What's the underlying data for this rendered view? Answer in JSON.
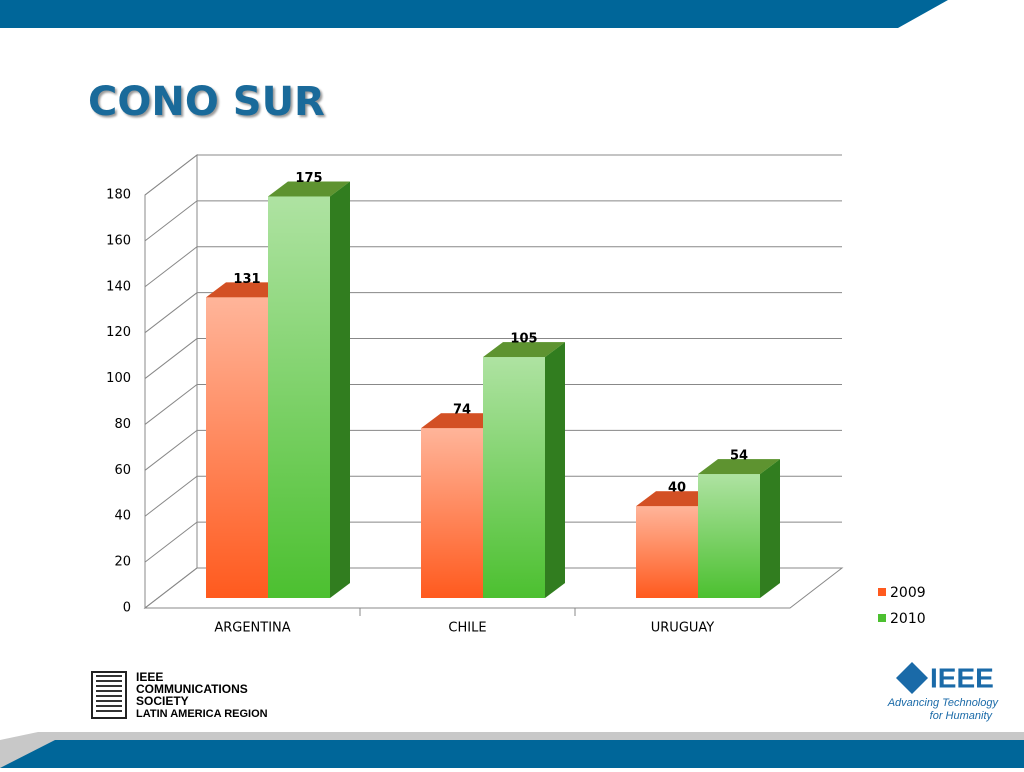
{
  "chart_data": {
    "type": "bar3d",
    "title": "CONO SUR",
    "categories": [
      "ARGENTINA",
      "CHILE",
      "URUGUAY"
    ],
    "series": [
      {
        "name": "2009",
        "color": "#ff5a1e",
        "values": [
          131,
          74,
          40
        ]
      },
      {
        "name": "2010",
        "color": "#4cc030",
        "values": [
          175,
          105,
          54
        ]
      }
    ],
    "ylim": [
      0,
      180
    ],
    "yticks": [
      0,
      20,
      40,
      60,
      80,
      100,
      120,
      140,
      160,
      180
    ],
    "grid": true,
    "legend": "right"
  },
  "logos": {
    "left": [
      "IEEE",
      "COMMUNICATIONS",
      "SOCIETY",
      "LATIN AMERICA REGION"
    ],
    "right": {
      "name": "IEEE",
      "tagline": [
        "Advancing Technology",
        "for Humanity"
      ]
    }
  }
}
